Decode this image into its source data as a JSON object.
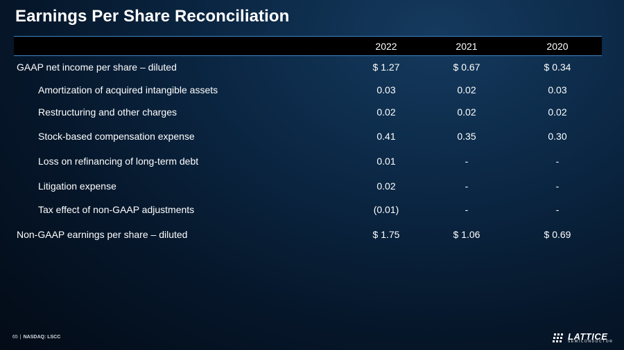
{
  "slide": {
    "title": "Earnings Per Share Reconciliation"
  },
  "table": {
    "columns": [
      "2022",
      "2021",
      "2020"
    ],
    "rows": [
      {
        "label": "GAAP net income per share – diluted",
        "values": [
          "$ 1.27",
          "$ 0.67",
          "$ 0.34"
        ]
      },
      {
        "label": "Amortization of acquired intangible assets",
        "values": [
          "0.03",
          "0.02",
          "0.03"
        ]
      },
      {
        "label": "Restructuring and other charges",
        "values": [
          "0.02",
          "0.02",
          "0.02"
        ]
      },
      {
        "label": "Stock-based compensation expense",
        "values": [
          "0.41",
          "0.35",
          "0.30"
        ]
      },
      {
        "label": "Loss on refinancing of long-term debt",
        "values": [
          "0.01",
          "-",
          "-"
        ]
      },
      {
        "label": "Litigation expense",
        "values": [
          "0.02",
          "-",
          "-"
        ]
      },
      {
        "label": "Tax effect of non-GAAP adjustments",
        "values": [
          "(0.01)",
          "-",
          "-"
        ]
      },
      {
        "label": "Non-GAAP earnings per share – diluted",
        "values": [
          "$ 1.75",
          "$ 1.06",
          "$ 0.69"
        ]
      }
    ]
  },
  "footer": {
    "page_number": "65",
    "separator": "|",
    "ticker": "NASDAQ: LSCC"
  },
  "logo": {
    "icon": "lattice-grid-icon",
    "word": "LATTICE",
    "sub": "SEMICONDUCTOR"
  },
  "colors": {
    "accent_line": "#3e88c8",
    "header_fill": "#000000",
    "text": "#ffffff"
  }
}
